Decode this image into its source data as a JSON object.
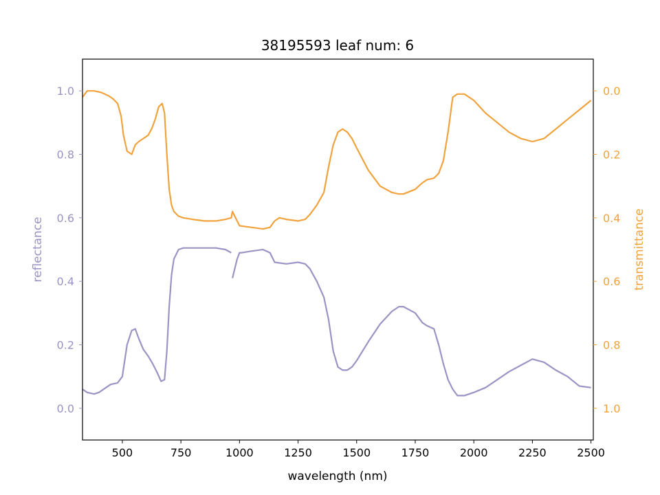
{
  "chart_data": {
    "type": "line",
    "title": "38195593 leaf num: 6",
    "xlabel": "wavelength (nm)",
    "ylabel_left": "reflectance",
    "ylabel_right": "transmittance",
    "xlim": [
      330,
      2510
    ],
    "ylim_left": [
      -0.1,
      1.1
    ],
    "ylim_right_inverted": [
      1.1,
      -0.1
    ],
    "xticks": [
      500,
      750,
      1000,
      1250,
      1500,
      1750,
      2000,
      2250,
      2500
    ],
    "yticks_left": [
      "0.0",
      "0.2",
      "0.4",
      "0.6",
      "0.8",
      "1.0"
    ],
    "yticks_right": [
      "0.0",
      "0.2",
      "0.4",
      "0.6",
      "0.8",
      "1.0"
    ],
    "grid": false,
    "colors": {
      "reflectance": "#9a93c4",
      "transmittance": "#f0a23c"
    },
    "series": [
      {
        "axis": "left",
        "x": [
          330,
          350,
          380,
          400,
          430,
          450,
          480,
          500,
          520,
          540,
          555,
          570,
          590,
          610,
          630,
          650,
          665,
          680,
          690,
          700,
          710,
          720,
          740,
          760,
          800,
          850,
          900,
          940,
          965
        ],
        "values": [
          0.06,
          0.05,
          0.045,
          0.05,
          0.065,
          0.075,
          0.08,
          0.1,
          0.2,
          0.245,
          0.25,
          0.22,
          0.185,
          0.165,
          0.14,
          0.11,
          0.085,
          0.09,
          0.18,
          0.32,
          0.42,
          0.47,
          0.5,
          0.505,
          0.505,
          0.505,
          0.505,
          0.5,
          0.49
        ]
      },
      {
        "axis": "left",
        "x": [
          970,
          980,
          990,
          1000,
          1010,
          1050,
          1100,
          1130,
          1150,
          1200,
          1250,
          1280,
          1300,
          1330,
          1360,
          1380,
          1400,
          1420,
          1440,
          1460,
          1480,
          1500,
          1550,
          1600,
          1650,
          1680,
          1700,
          1750,
          1780,
          1800,
          1830,
          1850,
          1870,
          1890,
          1910,
          1930,
          1960,
          2000,
          2050,
          2100,
          2150,
          2200,
          2250,
          2300,
          2350,
          2400,
          2450,
          2500
        ],
        "values": [
          0.41,
          0.44,
          0.47,
          0.49,
          0.49,
          0.495,
          0.5,
          0.49,
          0.46,
          0.455,
          0.46,
          0.455,
          0.44,
          0.4,
          0.35,
          0.28,
          0.18,
          0.13,
          0.12,
          0.12,
          0.13,
          0.15,
          0.21,
          0.265,
          0.305,
          0.32,
          0.32,
          0.3,
          0.27,
          0.26,
          0.25,
          0.2,
          0.14,
          0.09,
          0.06,
          0.04,
          0.04,
          0.05,
          0.065,
          0.09,
          0.115,
          0.135,
          0.155,
          0.145,
          0.12,
          0.1,
          0.07,
          0.065
        ]
      },
      {
        "axis": "right",
        "x": [
          330,
          350,
          380,
          410,
          440,
          460,
          480,
          495,
          505,
          520,
          540,
          555,
          570,
          590,
          610,
          625,
          640,
          655,
          670,
          680,
          690,
          700,
          710,
          720,
          740,
          760,
          800,
          850,
          900,
          940,
          965,
          970,
          980,
          990,
          1000,
          1050,
          1100,
          1130,
          1150,
          1170,
          1200,
          1250,
          1280,
          1300,
          1330,
          1360,
          1380,
          1400,
          1420,
          1440,
          1460,
          1480,
          1500,
          1550,
          1600,
          1650,
          1680,
          1700,
          1750,
          1780,
          1800,
          1830,
          1850,
          1870,
          1890,
          1910,
          1930,
          1960,
          2000,
          2050,
          2100,
          2150,
          2200,
          2250,
          2300,
          2350,
          2400,
          2450,
          2500
        ],
        "values": [
          0.02,
          0.0,
          0.0,
          0.005,
          0.015,
          0.025,
          0.04,
          0.08,
          0.14,
          0.19,
          0.2,
          0.17,
          0.16,
          0.15,
          0.14,
          0.12,
          0.09,
          0.05,
          0.04,
          0.07,
          0.2,
          0.31,
          0.36,
          0.38,
          0.395,
          0.4,
          0.405,
          0.41,
          0.41,
          0.405,
          0.4,
          0.38,
          0.395,
          0.41,
          0.425,
          0.43,
          0.435,
          0.43,
          0.41,
          0.4,
          0.405,
          0.41,
          0.405,
          0.39,
          0.36,
          0.32,
          0.24,
          0.17,
          0.13,
          0.12,
          0.13,
          0.15,
          0.18,
          0.25,
          0.3,
          0.32,
          0.325,
          0.325,
          0.31,
          0.29,
          0.28,
          0.275,
          0.26,
          0.22,
          0.13,
          0.02,
          0.01,
          0.01,
          0.03,
          0.07,
          0.1,
          0.13,
          0.15,
          0.16,
          0.15,
          0.12,
          0.09,
          0.06,
          0.03
        ]
      }
    ]
  }
}
